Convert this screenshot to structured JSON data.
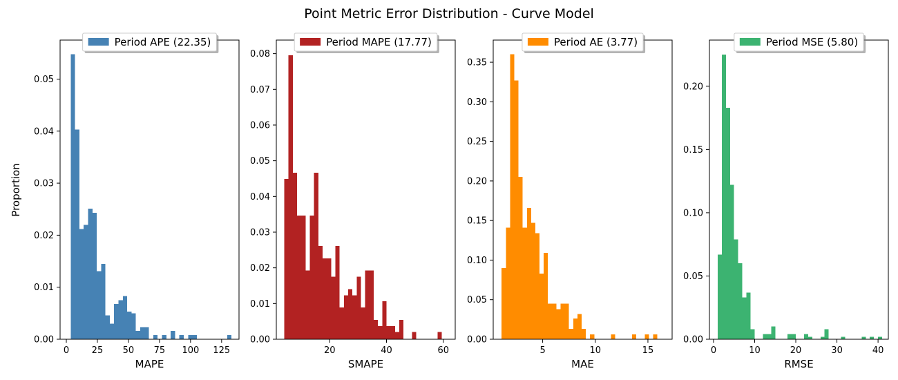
{
  "figure": {
    "title": "Point Metric Error Distribution - Curve Model",
    "ylabel": "Proportion"
  },
  "chart_data": [
    {
      "type": "bar",
      "legend_label": "Period APE (22.35)",
      "legend_placement": "upper-center",
      "color": "#4682b4",
      "xlabel": "MAPE",
      "xlim": [
        -5,
        139
      ],
      "ylim": [
        0,
        0.0575
      ],
      "xticks": [
        0,
        25,
        50,
        75,
        100,
        125
      ],
      "yticks": [
        0.0,
        0.01,
        0.02,
        0.03,
        0.04,
        0.05
      ],
      "ytick_format": 2,
      "bin_edges_start": 3.5,
      "bin_width": 3.5,
      "values": [
        0.0548,
        0.0403,
        0.0212,
        0.022,
        0.0251,
        0.0243,
        0.0131,
        0.0145,
        0.0046,
        0.003,
        0.0068,
        0.0075,
        0.0083,
        0.0053,
        0.005,
        0.0016,
        0.0023,
        0.0023,
        0.0,
        0.0008,
        0.0,
        0.0008,
        0.0,
        0.0016,
        0.0,
        0.0008,
        0.0,
        0.0008,
        0.0008,
        0.0,
        0.0,
        0.0,
        0.0,
        0.0,
        0.0,
        0.0,
        0.0008
      ]
    },
    {
      "type": "bar",
      "legend_label": "Period MAPE (17.77)",
      "legend_placement": "upper-center",
      "color": "#b22222",
      "xlabel": "SMAPE",
      "xlim": [
        1.2,
        64.2
      ],
      "ylim": [
        0,
        0.0838
      ],
      "xticks": [
        20,
        40,
        60
      ],
      "yticks": [
        0.0,
        0.01,
        0.02,
        0.03,
        0.04,
        0.05,
        0.06,
        0.07,
        0.08
      ],
      "ytick_format": 2,
      "bin_edges_start": 4.0,
      "bin_width": 1.5,
      "values": [
        0.0449,
        0.0795,
        0.0466,
        0.0346,
        0.0346,
        0.0193,
        0.0346,
        0.0466,
        0.0261,
        0.0226,
        0.0226,
        0.0175,
        0.0261,
        0.0089,
        0.0123,
        0.014,
        0.0123,
        0.0175,
        0.0089,
        0.0193,
        0.0193,
        0.0054,
        0.0037,
        0.0106,
        0.0037,
        0.0037,
        0.002,
        0.0054,
        0.0,
        0.0,
        0.002,
        0.0,
        0.0,
        0.0,
        0.0,
        0.0,
        0.002,
        0.0
      ]
    },
    {
      "type": "bar",
      "legend_label": "Period AE (3.77)",
      "legend_placement": "upper-center",
      "color": "#ff8c00",
      "xlabel": "MAE",
      "xlim": [
        0.3,
        17.3
      ],
      "ylim": [
        0,
        0.378
      ],
      "xticks": [
        5,
        10,
        15
      ],
      "yticks": [
        0.0,
        0.05,
        0.1,
        0.15,
        0.2,
        0.25,
        0.3,
        0.35
      ],
      "ytick_format": 2,
      "bin_edges_start": 1.1,
      "bin_width": 0.4,
      "values": [
        0.09,
        0.141,
        0.36,
        0.327,
        0.205,
        0.141,
        0.166,
        0.147,
        0.134,
        0.083,
        0.109,
        0.045,
        0.045,
        0.038,
        0.045,
        0.045,
        0.013,
        0.026,
        0.032,
        0.013,
        0.0,
        0.006,
        0.0,
        0.0,
        0.0,
        0.0,
        0.006,
        0.0,
        0.0,
        0.0,
        0.0,
        0.006,
        0.0,
        0.0,
        0.006,
        0.0,
        0.006
      ]
    },
    {
      "type": "bar",
      "legend_label": "Period MSE (5.80)",
      "legend_placement": "upper-center",
      "color": "#3cb371",
      "xlabel": "RMSE",
      "xlim": [
        -1,
        42.5
      ],
      "ylim": [
        0,
        0.2365
      ],
      "xticks": [
        0,
        10,
        20,
        30,
        40
      ],
      "yticks": [
        0.0,
        0.05,
        0.1,
        0.15,
        0.2
      ],
      "ytick_format": 2,
      "bin_edges_start": 1.0,
      "bin_width": 1.0,
      "values": [
        0.067,
        0.225,
        0.183,
        0.122,
        0.079,
        0.06,
        0.033,
        0.037,
        0.008,
        0.0,
        0.0,
        0.004,
        0.004,
        0.01,
        0.0,
        0.0,
        0.0,
        0.004,
        0.004,
        0.0,
        0.0,
        0.004,
        0.002,
        0.0,
        0.0,
        0.002,
        0.008,
        0.0,
        0.0,
        0.0,
        0.002,
        0.0,
        0.0,
        0.0,
        0.0,
        0.002,
        0.0,
        0.002,
        0.0,
        0.002
      ]
    }
  ]
}
